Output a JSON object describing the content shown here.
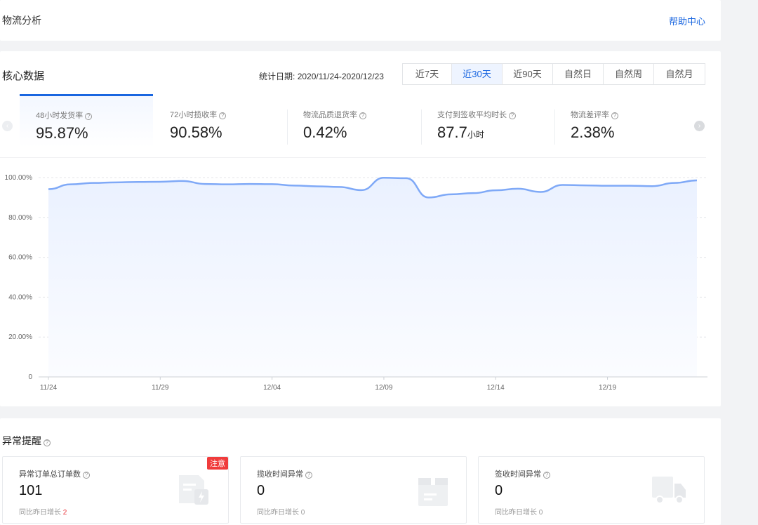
{
  "header": {
    "title": "物流分析",
    "help_link": "帮助中心"
  },
  "core": {
    "title": "核心数据",
    "stat_date_label": "统计日期:",
    "stat_date_range": "2020/11/24-2020/12/23",
    "range_tabs": [
      "近7天",
      "近30天",
      "近90天",
      "自然日",
      "自然周",
      "自然月"
    ],
    "active_range": "近30天",
    "metrics": [
      {
        "label": "48小时发货率",
        "value": "95.87%",
        "unit": ""
      },
      {
        "label": "72小时揽收率",
        "value": "90.58%",
        "unit": ""
      },
      {
        "label": "物流品质退货率",
        "value": "0.42%",
        "unit": ""
      },
      {
        "label": "支付到签收平均时长",
        "value": "87.7",
        "unit": "小时"
      },
      {
        "label": "物流差评率",
        "value": "2.38%",
        "unit": ""
      }
    ],
    "active_metric": "48小时发货率"
  },
  "chart_data": {
    "type": "area",
    "series": [
      {
        "name": "",
        "values": [
          94.2,
          96.6,
          97.3,
          97.6,
          97.8,
          97.9,
          98.3,
          96.8,
          96.6,
          96.8,
          96.7,
          96.0,
          95.6,
          95.3,
          93.7,
          99.9,
          99.7,
          90.0,
          91.6,
          92.2,
          93.6,
          94.4,
          92.8,
          96.3,
          96.1,
          95.9,
          95.9,
          95.7,
          97.3,
          98.6
        ]
      }
    ],
    "x": [
      "11/24",
      "11/25",
      "11/26",
      "11/27",
      "11/28",
      "11/29",
      "11/30",
      "12/01",
      "12/02",
      "12/03",
      "12/04",
      "12/05",
      "12/06",
      "12/07",
      "12/08",
      "12/09",
      "12/10",
      "12/11",
      "12/12",
      "12/13",
      "12/14",
      "12/15",
      "12/16",
      "12/17",
      "12/18",
      "12/19",
      "12/20",
      "12/21",
      "12/22",
      "12/23"
    ],
    "x_tick_labels": [
      "11/24",
      "11/29",
      "12/04",
      "12/09",
      "12/14",
      "12/19"
    ],
    "y_tick_labels": [
      "0",
      "20.00%",
      "40.00%",
      "60.00%",
      "80.00%",
      "100.00%"
    ],
    "ylim": [
      0,
      100
    ],
    "grid": true,
    "color": "#7fa9f7"
  },
  "alerts": {
    "title": "异常提醒",
    "cards": [
      {
        "label": "异常订单总订单数",
        "value": "101",
        "sub_prefix": "同比昨日增长",
        "sub_value": "2",
        "badge": "注意",
        "icon": "document-icon"
      },
      {
        "label": "揽收时间异常",
        "value": "0",
        "sub_prefix": "同比昨日增长",
        "sub_value": "0",
        "icon": "package-icon"
      },
      {
        "label": "签收时间异常",
        "value": "0",
        "sub_prefix": "同比昨日增长",
        "sub_value": "0",
        "icon": "truck-icon"
      }
    ]
  }
}
